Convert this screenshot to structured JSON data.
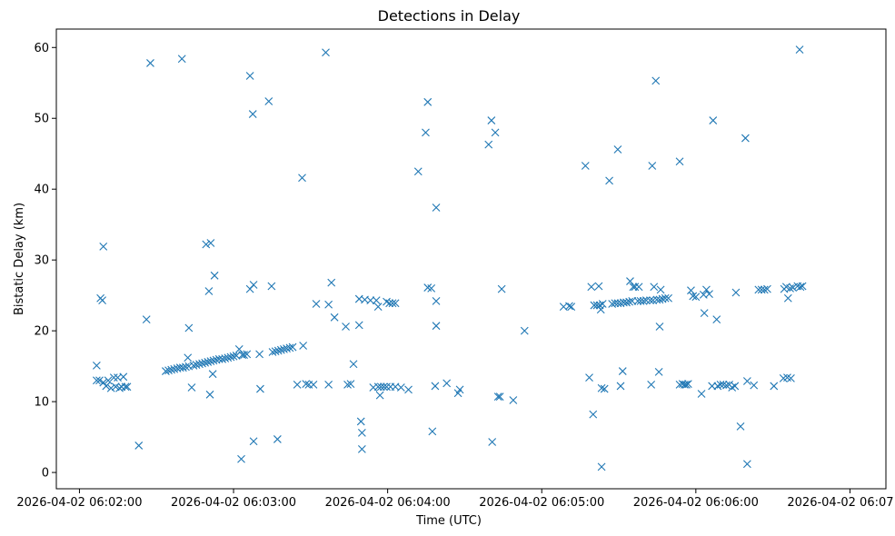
{
  "chart_data": {
    "type": "scatter",
    "title": "Detections in Delay",
    "xlabel": "Time (UTC)",
    "ylabel": "Bistatic Delay (km)",
    "x_unit": "seconds after 2026-04-02 06:02:00 UTC",
    "xlim": [
      -9,
      314
    ],
    "ylim": [
      -2.3,
      62.6
    ],
    "marker": "x",
    "color": "#1f77b4",
    "x_ticks": [
      {
        "value": 0,
        "label": "2026-04-02 06:02:00"
      },
      {
        "value": 60,
        "label": "2026-04-02 06:03:00"
      },
      {
        "value": 120,
        "label": "2026-04-02 06:04:00"
      },
      {
        "value": 180,
        "label": "2026-04-02 06:05:00"
      },
      {
        "value": 240,
        "label": "2026-04-02 06:06:00"
      },
      {
        "value": 300,
        "label": "2026-04-02 06:07:00"
      }
    ],
    "y_ticks": [
      {
        "value": 0,
        "label": "0"
      },
      {
        "value": 10,
        "label": "10"
      },
      {
        "value": 20,
        "label": "20"
      },
      {
        "value": 30,
        "label": "30"
      },
      {
        "value": 40,
        "label": "40"
      },
      {
        "value": 50,
        "label": "50"
      },
      {
        "value": 60,
        "label": "60"
      }
    ],
    "series": [
      {
        "name": "Detections",
        "points": [
          [
            6.7,
            15.1
          ],
          [
            6.7,
            13.0
          ],
          [
            7.8,
            13.0
          ],
          [
            8.2,
            24.6
          ],
          [
            8.9,
            24.3
          ],
          [
            9.3,
            31.9
          ],
          [
            9.3,
            12.7
          ],
          [
            10.4,
            12.2
          ],
          [
            11.2,
            13.0
          ],
          [
            12.3,
            11.9
          ],
          [
            13.4,
            13.4
          ],
          [
            14.1,
            12.1
          ],
          [
            14.9,
            13.4
          ],
          [
            15.6,
            11.9
          ],
          [
            16.4,
            12.1
          ],
          [
            17.1,
            13.5
          ],
          [
            17.9,
            12.1
          ],
          [
            18.6,
            12.1
          ],
          [
            23.1,
            3.8
          ],
          [
            26.1,
            21.6
          ],
          [
            27.6,
            57.8
          ],
          [
            33.6,
            14.3
          ],
          [
            34.7,
            14.4
          ],
          [
            35.8,
            14.5
          ],
          [
            36.9,
            14.6
          ],
          [
            38.1,
            14.7
          ],
          [
            39.2,
            14.8
          ],
          [
            39.9,
            58.4
          ],
          [
            40.3,
            14.8
          ],
          [
            41.4,
            14.9
          ],
          [
            42.2,
            16.2
          ],
          [
            42.6,
            20.4
          ],
          [
            42.6,
            15.0
          ],
          [
            43.7,
            12.0
          ],
          [
            44.4,
            15.1
          ],
          [
            45.5,
            15.2
          ],
          [
            46.7,
            15.3
          ],
          [
            47.8,
            15.4
          ],
          [
            48.9,
            15.5
          ],
          [
            49.3,
            32.2
          ],
          [
            50.0,
            15.6
          ],
          [
            50.4,
            25.6
          ],
          [
            50.8,
            11.0
          ],
          [
            51.1,
            15.7
          ],
          [
            51.1,
            32.4
          ],
          [
            51.9,
            13.9
          ],
          [
            52.2,
            15.8
          ],
          [
            52.6,
            27.8
          ],
          [
            53.3,
            15.9
          ],
          [
            54.4,
            16.0
          ],
          [
            55.6,
            16.0
          ],
          [
            56.7,
            16.1
          ],
          [
            57.8,
            16.2
          ],
          [
            58.9,
            16.3
          ],
          [
            60.0,
            16.4
          ],
          [
            61.1,
            16.5
          ],
          [
            62.2,
            17.4
          ],
          [
            63.0,
            1.9
          ],
          [
            63.4,
            16.6
          ],
          [
            64.1,
            16.6
          ],
          [
            65.2,
            16.7
          ],
          [
            66.4,
            56.0
          ],
          [
            66.4,
            25.9
          ],
          [
            67.5,
            50.6
          ],
          [
            67.8,
            26.5
          ],
          [
            67.8,
            4.4
          ],
          [
            70.1,
            16.7
          ],
          [
            70.4,
            11.8
          ],
          [
            73.7,
            52.4
          ],
          [
            74.8,
            26.3
          ],
          [
            75.2,
            17.0
          ],
          [
            76.3,
            17.1
          ],
          [
            77.1,
            4.7
          ],
          [
            77.4,
            17.2
          ],
          [
            78.5,
            17.3
          ],
          [
            79.6,
            17.4
          ],
          [
            80.7,
            17.5
          ],
          [
            81.9,
            17.6
          ],
          [
            83.0,
            17.7
          ],
          [
            84.8,
            12.4
          ],
          [
            86.7,
            41.6
          ],
          [
            87.1,
            17.9
          ],
          [
            88.2,
            12.5
          ],
          [
            89.3,
            12.4
          ],
          [
            91.1,
            12.4
          ],
          [
            92.2,
            23.8
          ],
          [
            95.9,
            59.3
          ],
          [
            97.0,
            23.7
          ],
          [
            97.0,
            12.4
          ],
          [
            98.1,
            26.8
          ],
          [
            99.3,
            21.9
          ],
          [
            103.7,
            20.6
          ],
          [
            104.4,
            12.4
          ],
          [
            105.6,
            12.5
          ],
          [
            106.7,
            15.3
          ],
          [
            108.9,
            24.5
          ],
          [
            108.9,
            20.8
          ],
          [
            109.6,
            7.2
          ],
          [
            110.0,
            5.6
          ],
          [
            110.0,
            3.3
          ],
          [
            111.1,
            24.4
          ],
          [
            113.3,
            24.3
          ],
          [
            114.4,
            12.0
          ],
          [
            115.6,
            24.3
          ],
          [
            116.3,
            12.1
          ],
          [
            116.3,
            23.4
          ],
          [
            117.0,
            10.9
          ],
          [
            117.4,
            12.1
          ],
          [
            118.5,
            12.1
          ],
          [
            119.6,
            24.1
          ],
          [
            119.6,
            12.1
          ],
          [
            120.7,
            23.9
          ],
          [
            121.1,
            12.1
          ],
          [
            121.9,
            23.9
          ],
          [
            123.0,
            23.9
          ],
          [
            123.0,
            12.1
          ],
          [
            125.2,
            12.0
          ],
          [
            128.1,
            11.7
          ],
          [
            131.9,
            42.5
          ],
          [
            134.8,
            48.0
          ],
          [
            135.6,
            26.1
          ],
          [
            135.6,
            52.3
          ],
          [
            137.0,
            26.0
          ],
          [
            137.4,
            5.8
          ],
          [
            138.5,
            12.2
          ],
          [
            138.9,
            37.4
          ],
          [
            138.9,
            24.2
          ],
          [
            138.9,
            20.7
          ],
          [
            143.0,
            12.6
          ],
          [
            147.4,
            11.2
          ],
          [
            148.1,
            11.7
          ],
          [
            159.3,
            46.3
          ],
          [
            160.4,
            49.7
          ],
          [
            160.7,
            4.3
          ],
          [
            161.9,
            48.0
          ],
          [
            163.0,
            10.7
          ],
          [
            163.7,
            10.7
          ],
          [
            164.4,
            25.9
          ],
          [
            168.9,
            10.2
          ],
          [
            173.3,
            20.0
          ],
          [
            188.5,
            23.4
          ],
          [
            190.7,
            23.5
          ],
          [
            191.5,
            23.4
          ],
          [
            197.0,
            43.3
          ],
          [
            198.5,
            13.4
          ],
          [
            199.3,
            26.2
          ],
          [
            200.0,
            8.2
          ],
          [
            200.4,
            23.6
          ],
          [
            201.5,
            23.6
          ],
          [
            202.2,
            26.3
          ],
          [
            202.6,
            23.6
          ],
          [
            203.0,
            23.0
          ],
          [
            203.3,
            0.8
          ],
          [
            203.3,
            11.9
          ],
          [
            203.7,
            23.8
          ],
          [
            204.4,
            11.8
          ],
          [
            206.3,
            41.2
          ],
          [
            207.4,
            23.8
          ],
          [
            208.5,
            23.9
          ],
          [
            209.6,
            45.6
          ],
          [
            209.6,
            23.9
          ],
          [
            210.7,
            12.2
          ],
          [
            210.7,
            23.9
          ],
          [
            211.5,
            14.3
          ],
          [
            211.9,
            24.0
          ],
          [
            213.0,
            24.0
          ],
          [
            214.1,
            24.1
          ],
          [
            214.4,
            27.0
          ],
          [
            215.2,
            24.2
          ],
          [
            215.6,
            26.2
          ],
          [
            216.3,
            26.2
          ],
          [
            217.4,
            24.2
          ],
          [
            217.8,
            26.2
          ],
          [
            218.5,
            24.2
          ],
          [
            219.6,
            24.2
          ],
          [
            220.7,
            24.3
          ],
          [
            222.2,
            24.3
          ],
          [
            222.6,
            12.4
          ],
          [
            223.0,
            43.3
          ],
          [
            223.3,
            24.3
          ],
          [
            223.7,
            26.2
          ],
          [
            224.4,
            55.3
          ],
          [
            224.8,
            24.4
          ],
          [
            225.6,
            14.2
          ],
          [
            225.9,
            24.4
          ],
          [
            225.9,
            20.6
          ],
          [
            226.3,
            25.8
          ],
          [
            227.0,
            24.5
          ],
          [
            228.1,
            24.6
          ],
          [
            229.3,
            24.6
          ],
          [
            233.7,
            43.9
          ],
          [
            233.7,
            12.4
          ],
          [
            234.8,
            12.5
          ],
          [
            235.6,
            12.4
          ],
          [
            236.3,
            12.4
          ],
          [
            237.0,
            12.5
          ],
          [
            238.1,
            25.7
          ],
          [
            238.9,
            24.9
          ],
          [
            240.0,
            24.8
          ],
          [
            242.2,
            11.1
          ],
          [
            243.0,
            25.1
          ],
          [
            243.3,
            22.5
          ],
          [
            244.1,
            25.8
          ],
          [
            245.2,
            25.2
          ],
          [
            246.3,
            12.2
          ],
          [
            246.7,
            49.7
          ],
          [
            248.1,
            21.6
          ],
          [
            248.5,
            12.2
          ],
          [
            249.6,
            12.4
          ],
          [
            250.7,
            12.4
          ],
          [
            251.9,
            12.3
          ],
          [
            253.0,
            12.4
          ],
          [
            254.1,
            12.0
          ],
          [
            255.2,
            12.2
          ],
          [
            255.6,
            25.4
          ],
          [
            257.4,
            6.5
          ],
          [
            259.3,
            47.2
          ],
          [
            260.0,
            1.2
          ],
          [
            260.0,
            12.9
          ],
          [
            262.6,
            12.3
          ],
          [
            264.4,
            25.8
          ],
          [
            265.6,
            25.8
          ],
          [
            266.7,
            25.8
          ],
          [
            267.8,
            25.9
          ],
          [
            270.4,
            12.2
          ],
          [
            274.1,
            13.3
          ],
          [
            274.4,
            25.9
          ],
          [
            275.2,
            26.2
          ],
          [
            275.6,
            13.4
          ],
          [
            275.9,
            24.6
          ],
          [
            276.7,
            26.0
          ],
          [
            277.0,
            13.3
          ],
          [
            277.8,
            26.1
          ],
          [
            279.6,
            26.3
          ],
          [
            280.4,
            59.7
          ],
          [
            280.7,
            26.2
          ],
          [
            281.5,
            26.3
          ]
        ]
      }
    ]
  }
}
